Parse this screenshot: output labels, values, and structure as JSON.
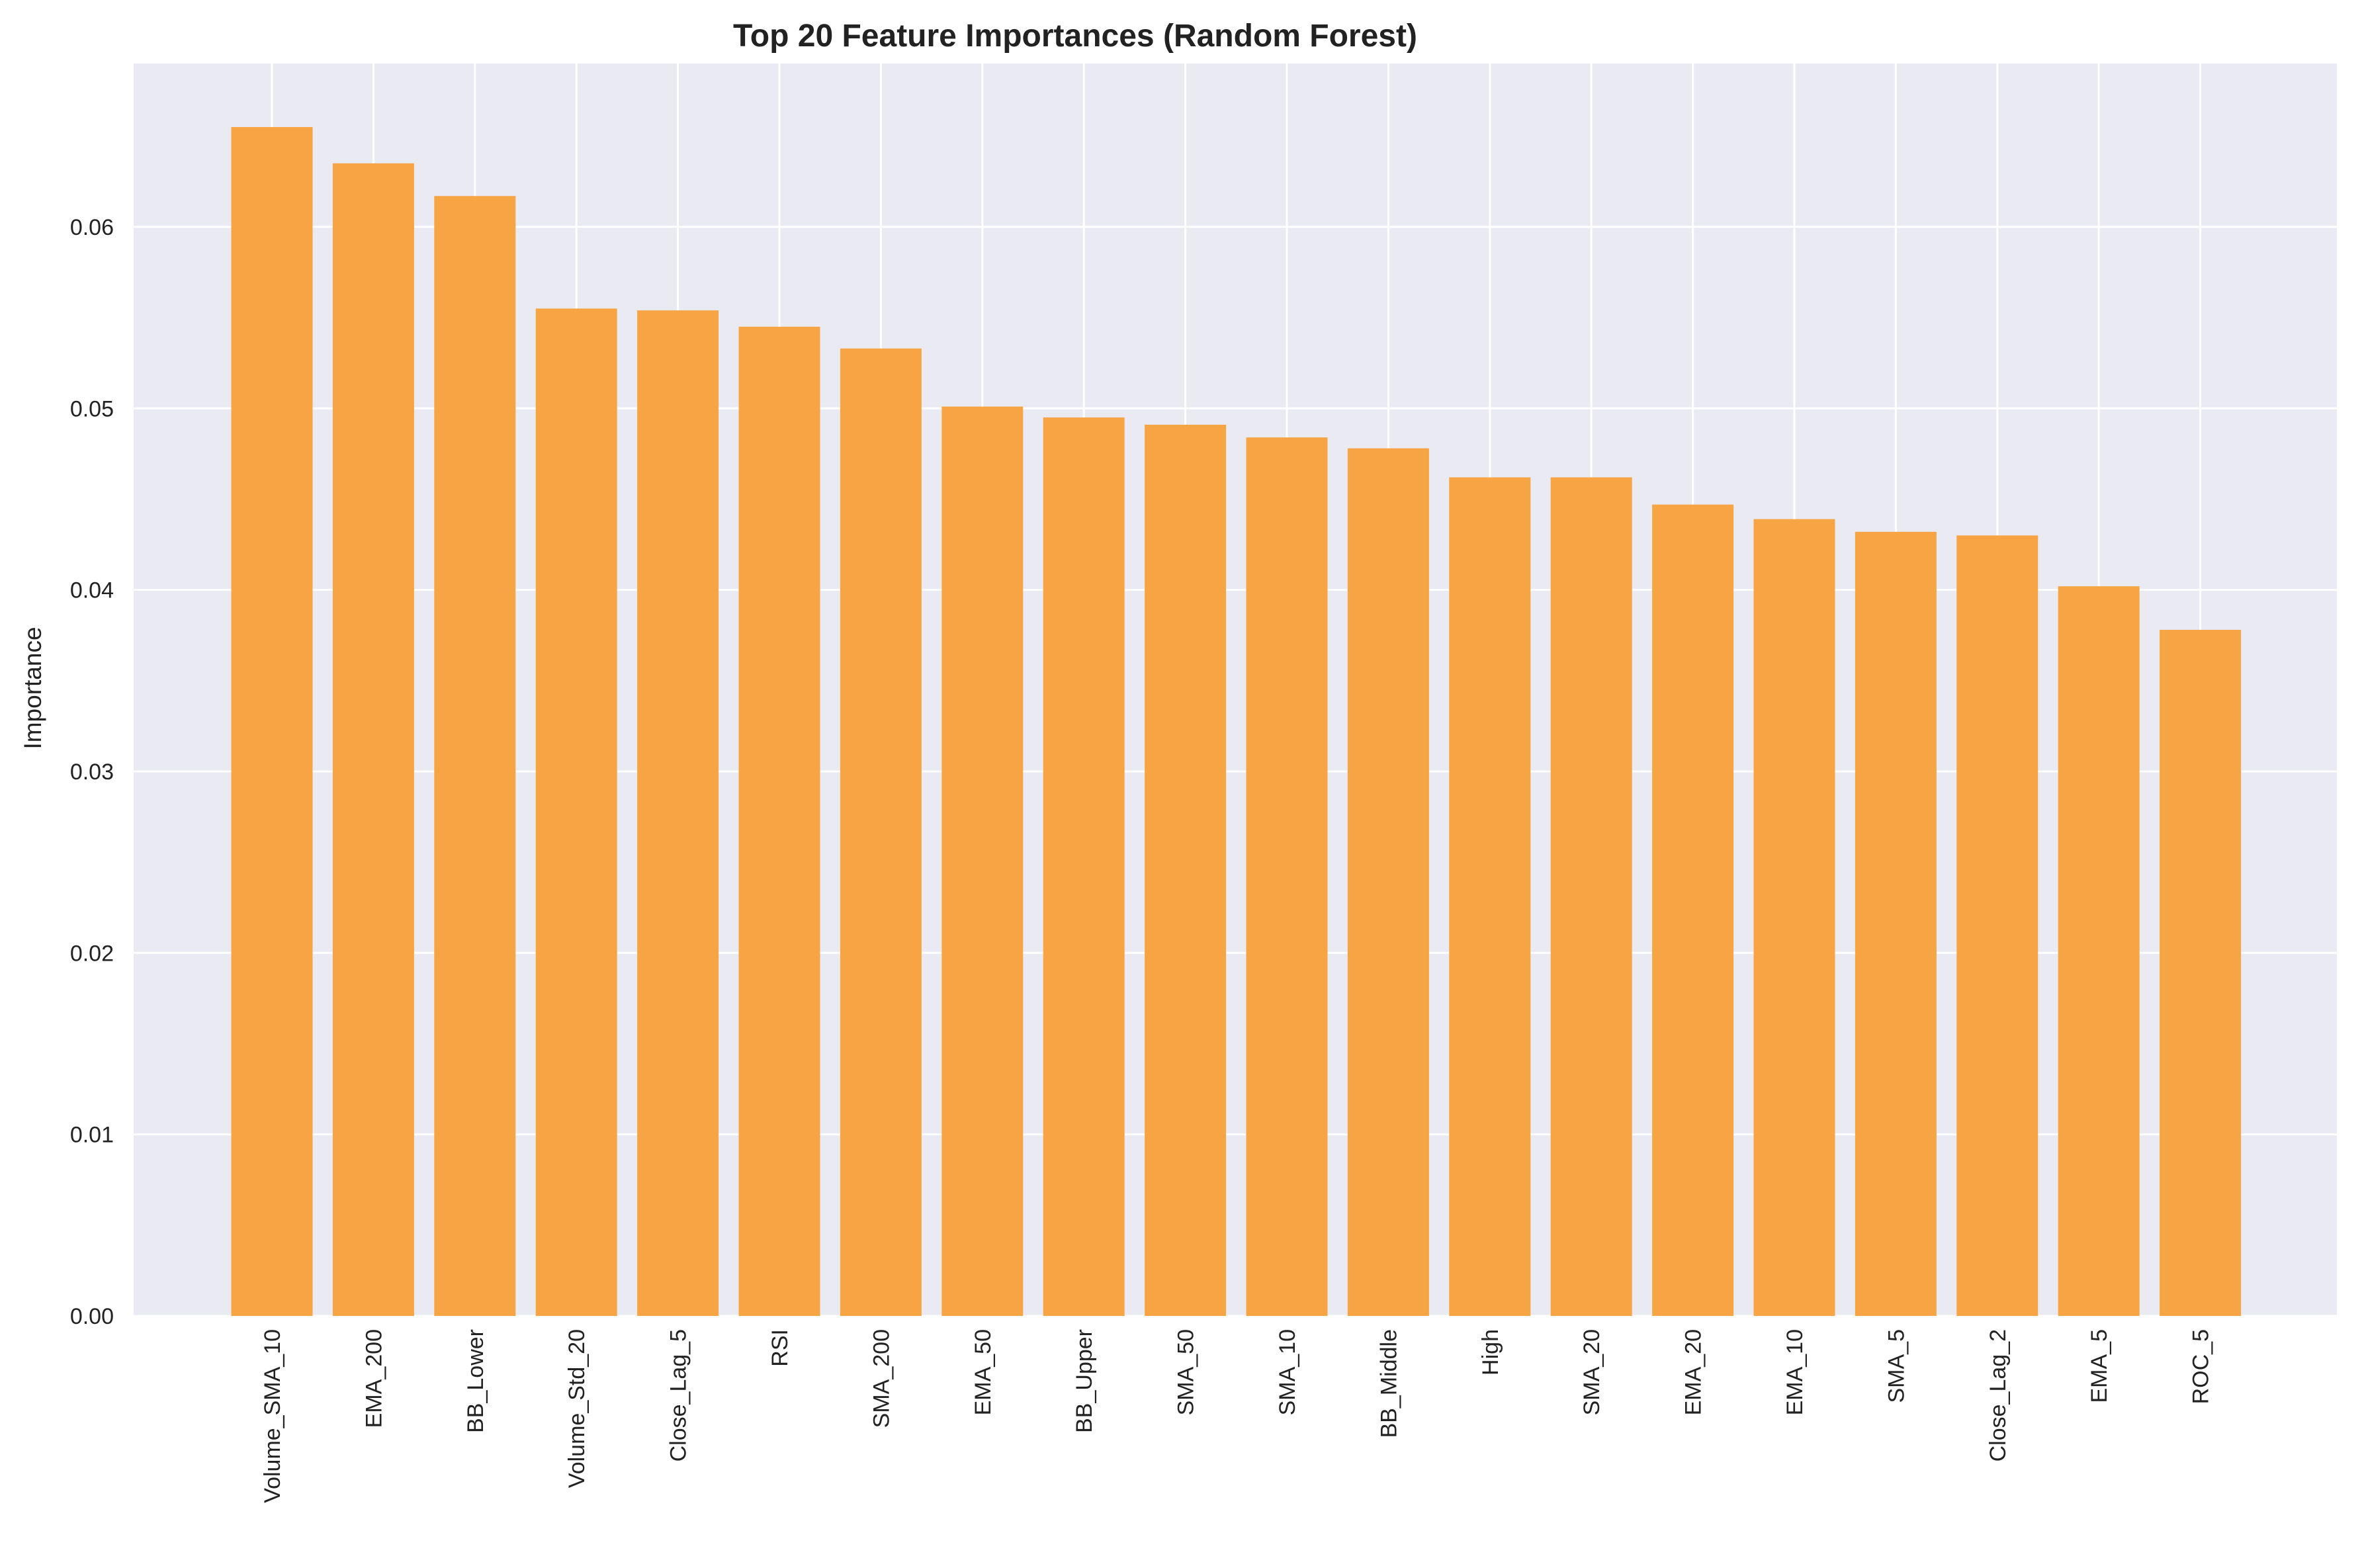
{
  "chart_data": {
    "type": "bar",
    "title": "Top 20 Feature Importances (Random Forest)",
    "xlabel": "",
    "ylabel": "Importance",
    "categories": [
      "Volume_SMA_10",
      "EMA_200",
      "BB_Lower",
      "Volume_Std_20",
      "Close_Lag_5",
      "RSI",
      "SMA_200",
      "EMA_50",
      "BB_Upper",
      "SMA_50",
      "SMA_10",
      "BB_Middle",
      "High",
      "SMA_20",
      "EMA_20",
      "EMA_10",
      "SMA_5",
      "Close_Lag_2",
      "EMA_5",
      "ROC_5"
    ],
    "values": [
      0.0655,
      0.0635,
      0.0617,
      0.0555,
      0.0554,
      0.0545,
      0.0533,
      0.0501,
      0.0495,
      0.0491,
      0.0484,
      0.0478,
      0.0462,
      0.0462,
      0.0447,
      0.0439,
      0.0432,
      0.043,
      0.0402,
      0.0378
    ],
    "ylim": [
      0,
      0.069
    ],
    "yticks": [
      "0.00",
      "0.01",
      "0.02",
      "0.03",
      "0.04",
      "0.05",
      "0.06"
    ],
    "grid": true,
    "legend": "none",
    "colors": {
      "bar": "#f7a544",
      "plot_background": "#eaeaf2",
      "grid": "#ffffff",
      "text": "#222222"
    }
  }
}
